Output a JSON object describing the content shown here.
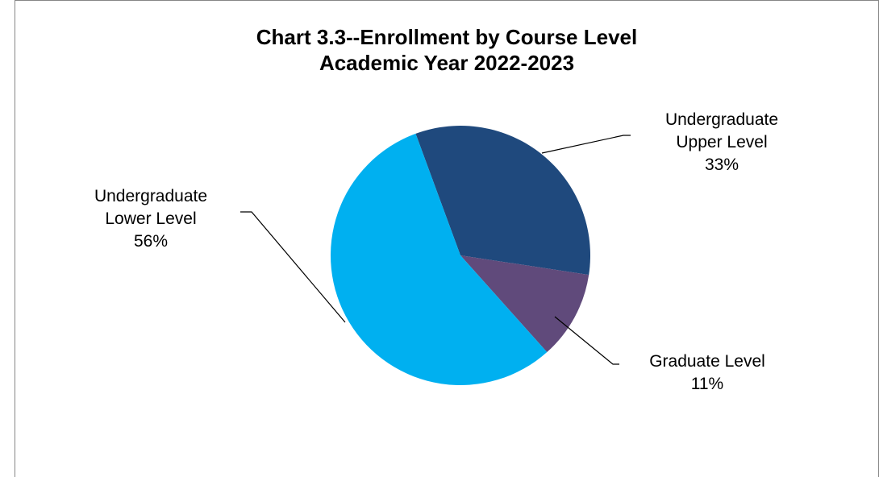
{
  "chart_data": {
    "type": "pie",
    "title": "Chart 3.3--Enrollment by Course Level",
    "subtitle": "Academic Year 2022-2023",
    "start_category": "Undergraduate Upper Level",
    "direction": "clockwise",
    "legend": "none",
    "slices": [
      {
        "name": "Undergraduate Upper Level",
        "line1": "Undergraduate",
        "line2": "Upper Level",
        "value": 33,
        "label": "33%",
        "color": "#1F497D"
      },
      {
        "name": "Graduate Level",
        "line1": "Graduate Level",
        "line2": "",
        "value": 11,
        "label": "11%",
        "color": "#604A7B"
      },
      {
        "name": "Undergraduate Lower Level",
        "line1": "Undergraduate",
        "line2": "Lower Level",
        "value": 56,
        "label": "56%",
        "color": "#00B0F0"
      }
    ]
  }
}
